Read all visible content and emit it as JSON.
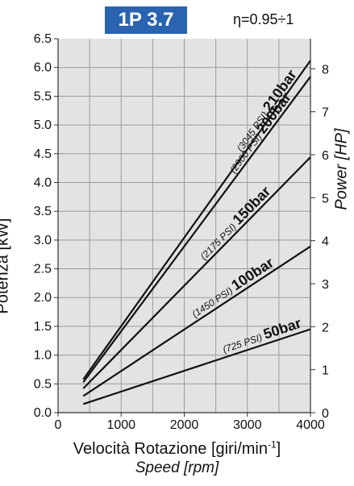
{
  "badge": "1P 3.7",
  "efficiency": "η=0.95÷1",
  "chart_data": {
    "type": "line",
    "xlabel": "Velocità Rotazione [giri/min-1]",
    "xlabel_italic": "Speed [rpm]",
    "ylabel": "Potenza [kW]",
    "ylabel_right": "Power [HP]",
    "xlim": [
      0,
      4000
    ],
    "ylim": [
      0,
      6.5
    ],
    "ylim_right": [
      0,
      8.7
    ],
    "x_ticks": [
      "0",
      "1000",
      "2000",
      "3000",
      "4000"
    ],
    "y_ticks": [
      "0.0",
      "0.5",
      "1.0",
      "1.5",
      "2.0",
      "2.5",
      "3.0",
      "3.5",
      "4.0",
      "4.5",
      "5.0",
      "5.5",
      "6.0",
      "6.5"
    ],
    "y_right_ticks": [
      "0",
      "1",
      "2",
      "3",
      "4",
      "5",
      "6",
      "7",
      "8"
    ],
    "grid": true,
    "series": [
      {
        "name": "50bar",
        "psi": "(725 PSI)",
        "x": [
          400,
          4000
        ],
        "y": [
          0.15,
          1.45
        ]
      },
      {
        "name": "100bar",
        "psi": "(1450 PSI)",
        "x": [
          400,
          4000
        ],
        "y": [
          0.29,
          2.89
        ]
      },
      {
        "name": "150bar",
        "psi": "(2175 PSI)",
        "x": [
          400,
          4000
        ],
        "y": [
          0.42,
          4.44
        ]
      },
      {
        "name": "200bar",
        "psi": "(2900 PSI)",
        "x": [
          400,
          4000
        ],
        "y": [
          0.53,
          5.84
        ]
      },
      {
        "name": "210bar",
        "psi": "(3045 PSI)",
        "x": [
          400,
          4000
        ],
        "y": [
          0.58,
          6.12
        ]
      }
    ]
  }
}
